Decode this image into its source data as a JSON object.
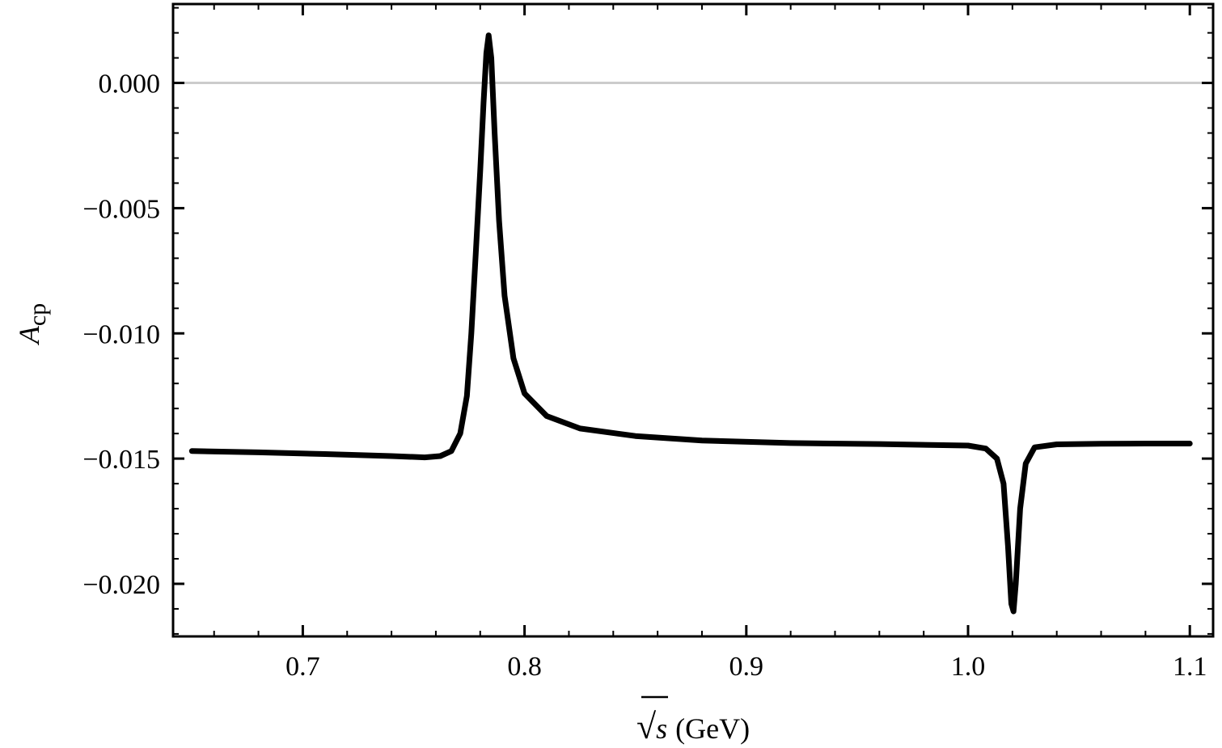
{
  "chart_data": {
    "type": "line",
    "title": "",
    "xlabel": {
      "radical": "√",
      "var": "s",
      "unit": "(GeV)"
    },
    "ylabel": {
      "main": "A",
      "sub": "cp"
    },
    "xlim": [
      0.6415,
      1.1105
    ],
    "ylim": [
      -0.0221,
      0.00315
    ],
    "x_ticks": [
      {
        "value": 0.7,
        "label": "0.7"
      },
      {
        "value": 0.8,
        "label": "0.8"
      },
      {
        "value": 0.9,
        "label": "0.9"
      },
      {
        "value": 1.0,
        "label": "1.0"
      },
      {
        "value": 1.1,
        "label": "1.1"
      }
    ],
    "y_ticks": [
      {
        "value": 0.0,
        "label": "0.000"
      },
      {
        "value": -0.005,
        "label": "−0.005"
      },
      {
        "value": -0.01,
        "label": "−0.010"
      },
      {
        "value": -0.015,
        "label": "−0.015"
      },
      {
        "value": -0.02,
        "label": "−0.020"
      }
    ],
    "reference_line": {
      "y": 0.0,
      "color": "#cccccc"
    },
    "grid": false,
    "series": [
      {
        "color": "#000000",
        "points": [
          [
            0.65,
            -0.0147
          ],
          [
            0.68,
            -0.01475
          ],
          [
            0.71,
            -0.01482
          ],
          [
            0.74,
            -0.0149
          ],
          [
            0.755,
            -0.01495
          ],
          [
            0.762,
            -0.0149
          ],
          [
            0.767,
            -0.0147
          ],
          [
            0.771,
            -0.014
          ],
          [
            0.774,
            -0.0125
          ],
          [
            0.776,
            -0.01
          ],
          [
            0.778,
            -0.0068
          ],
          [
            0.78,
            -0.0035
          ],
          [
            0.7815,
            -0.0008
          ],
          [
            0.7828,
            0.0012
          ],
          [
            0.7838,
            0.0019
          ],
          [
            0.785,
            0.001
          ],
          [
            0.7865,
            -0.002
          ],
          [
            0.7885,
            -0.0055
          ],
          [
            0.791,
            -0.0085
          ],
          [
            0.795,
            -0.011
          ],
          [
            0.8,
            -0.0124
          ],
          [
            0.81,
            -0.0133
          ],
          [
            0.825,
            -0.0138
          ],
          [
            0.85,
            -0.0141
          ],
          [
            0.88,
            -0.01428
          ],
          [
            0.92,
            -0.01438
          ],
          [
            0.96,
            -0.01442
          ],
          [
            1.0,
            -0.01448
          ],
          [
            1.008,
            -0.0146
          ],
          [
            1.013,
            -0.015
          ],
          [
            1.016,
            -0.016
          ],
          [
            1.018,
            -0.0185
          ],
          [
            1.0195,
            -0.0208
          ],
          [
            1.0205,
            -0.0211
          ],
          [
            1.0215,
            -0.02
          ],
          [
            1.0235,
            -0.017
          ],
          [
            1.026,
            -0.0152
          ],
          [
            1.03,
            -0.01455
          ],
          [
            1.04,
            -0.01443
          ],
          [
            1.06,
            -0.01441
          ],
          [
            1.08,
            -0.0144
          ],
          [
            1.1,
            -0.0144
          ]
        ]
      }
    ]
  }
}
